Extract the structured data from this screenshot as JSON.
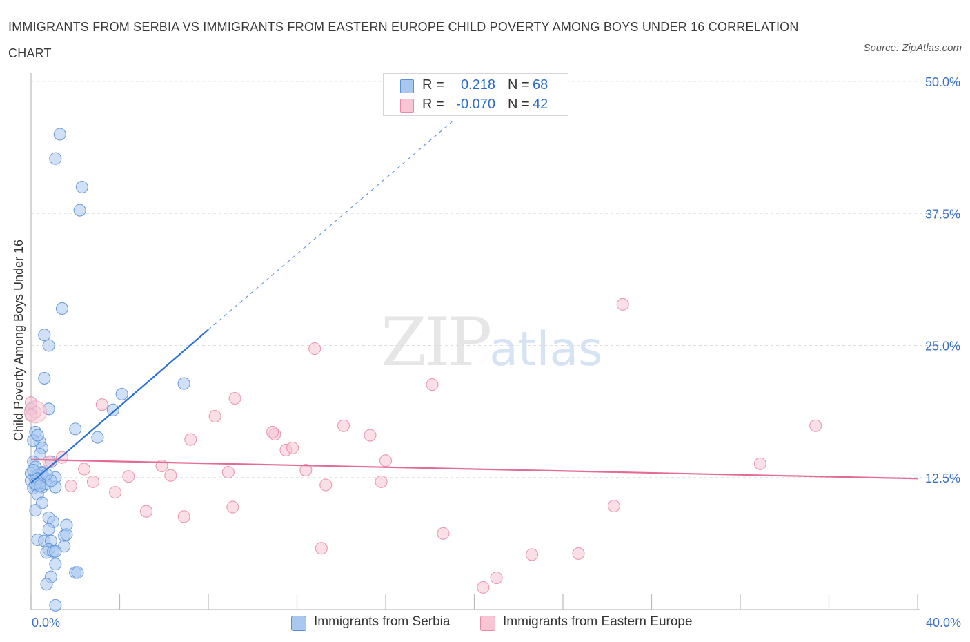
{
  "title": "IMMIGRANTS FROM SERBIA VS IMMIGRANTS FROM EASTERN EUROPE CHILD POVERTY AMONG BOYS UNDER 16 CORRELATION CHART",
  "source": "Source: ZipAtlas.com",
  "watermark": {
    "zip": "ZIP",
    "atlas": "atlas"
  },
  "legend": {
    "rows": [
      {
        "r_label": "R =",
        "r_value": "0.218",
        "n_label": "N =",
        "n_value": "68",
        "color": "#a9c8f0",
        "border": "#5b8fd6"
      },
      {
        "r_label": "R =",
        "r_value": "-0.070",
        "n_label": "N =",
        "n_value": "42",
        "color": "#f7c5d3",
        "border": "#e88aa6"
      }
    ]
  },
  "colors": {
    "serbia": "#5b8fd6",
    "serbia_fill": "#a9c8f0",
    "eastern_europe": "#e88aa6",
    "eastern_europe_fill": "#f7c5d3",
    "serbia_line": "#2a6fd4",
    "ee_line": "#e56b97",
    "axis_label": "#3a72c8"
  },
  "chart_data": {
    "type": "scatter",
    "title": "IMMIGRANTS FROM SERBIA VS IMMIGRANTS FROM EASTERN EUROPE CHILD POVERTY AMONG BOYS UNDER 16 CORRELATION CHART",
    "xlabel": "",
    "ylabel": "Child Poverty Among Boys Under 16",
    "xlim": [
      0,
      40
    ],
    "ylim": [
      0,
      50
    ],
    "x_tick_labels": [
      "0.0%",
      "40.0%"
    ],
    "y_ticks": [
      12.5,
      25.0,
      37.5,
      50.0
    ],
    "y_tick_labels": [
      "12.5%",
      "25.0%",
      "37.5%",
      "50.0%"
    ],
    "grid": true,
    "series": [
      {
        "name": "Immigrants from Serbia",
        "points": [
          [
            1.3,
            45.0
          ],
          [
            1.1,
            42.7
          ],
          [
            2.3,
            40.0
          ],
          [
            2.2,
            37.8
          ],
          [
            1.4,
            28.5
          ],
          [
            0.6,
            26.0
          ],
          [
            0.8,
            25.0
          ],
          [
            0.6,
            21.9
          ],
          [
            0.0,
            19.0
          ],
          [
            0.8,
            19.0
          ],
          [
            0.2,
            16.8
          ],
          [
            0.4,
            15.9
          ],
          [
            0.5,
            15.3
          ],
          [
            0.4,
            14.7
          ],
          [
            0.1,
            14.0
          ],
          [
            0.9,
            14.0
          ],
          [
            0.2,
            13.5
          ],
          [
            0.5,
            13.0
          ],
          [
            0.0,
            12.9
          ],
          [
            0.3,
            12.7
          ],
          [
            0.6,
            12.5
          ],
          [
            1.1,
            12.5
          ],
          [
            0.0,
            12.2
          ],
          [
            0.4,
            12.0
          ],
          [
            0.2,
            11.8
          ],
          [
            0.5,
            11.6
          ],
          [
            0.1,
            11.5
          ],
          [
            0.7,
            11.9
          ],
          [
            1.1,
            11.6
          ],
          [
            0.3,
            10.9
          ],
          [
            0.5,
            10.1
          ],
          [
            0.2,
            9.4
          ],
          [
            0.8,
            8.7
          ],
          [
            1.0,
            8.3
          ],
          [
            1.6,
            8.0
          ],
          [
            0.8,
            7.6
          ],
          [
            1.5,
            7.0
          ],
          [
            1.6,
            7.1
          ],
          [
            0.3,
            6.6
          ],
          [
            0.6,
            6.5
          ],
          [
            0.9,
            6.5
          ],
          [
            1.5,
            6.0
          ],
          [
            0.8,
            5.7
          ],
          [
            0.7,
            5.4
          ],
          [
            1.0,
            5.5
          ],
          [
            1.1,
            5.5
          ],
          [
            1.1,
            4.3
          ],
          [
            2.0,
            3.5
          ],
          [
            2.1,
            3.5
          ],
          [
            0.9,
            3.1
          ],
          [
            0.7,
            2.4
          ],
          [
            1.1,
            0.4
          ],
          [
            4.1,
            20.4
          ],
          [
            3.7,
            18.9
          ],
          [
            3.0,
            16.3
          ],
          [
            6.9,
            21.4
          ],
          [
            2.0,
            17.1
          ],
          [
            0.2,
            12.3
          ],
          [
            0.4,
            12.0
          ],
          [
            0.9,
            12.2
          ],
          [
            0.5,
            12.9
          ],
          [
            0.1,
            13.2
          ],
          [
            0.3,
            12.4
          ],
          [
            0.2,
            11.9
          ],
          [
            0.7,
            12.8
          ],
          [
            0.1,
            16.0
          ],
          [
            0.3,
            16.5
          ],
          [
            0.4,
            11.7
          ]
        ]
      },
      {
        "name": "Immigrants from Eastern Europe",
        "points": [
          [
            0.2,
            18.7
          ],
          [
            3.2,
            19.4
          ],
          [
            9.2,
            20.0
          ],
          [
            8.3,
            18.3
          ],
          [
            12.8,
            24.7
          ],
          [
            18.1,
            21.3
          ],
          [
            26.7,
            28.9
          ],
          [
            35.4,
            17.4
          ],
          [
            14.1,
            17.4
          ],
          [
            15.3,
            16.5
          ],
          [
            11.0,
            16.6
          ],
          [
            11.5,
            15.1
          ],
          [
            7.2,
            16.1
          ],
          [
            10.9,
            16.8
          ],
          [
            11.8,
            15.3
          ],
          [
            16.0,
            14.1
          ],
          [
            0.8,
            14.0
          ],
          [
            1.4,
            14.4
          ],
          [
            2.4,
            13.3
          ],
          [
            5.9,
            13.6
          ],
          [
            6.3,
            12.7
          ],
          [
            4.4,
            12.6
          ],
          [
            8.9,
            13.0
          ],
          [
            12.4,
            13.2
          ],
          [
            15.8,
            12.1
          ],
          [
            2.8,
            12.1
          ],
          [
            1.8,
            11.7
          ],
          [
            13.3,
            11.8
          ],
          [
            32.9,
            13.8
          ],
          [
            3.8,
            11.1
          ],
          [
            26.3,
            9.8
          ],
          [
            9.1,
            9.7
          ],
          [
            5.2,
            9.3
          ],
          [
            6.9,
            8.8
          ],
          [
            18.6,
            7.2
          ],
          [
            13.1,
            5.8
          ],
          [
            22.6,
            5.2
          ],
          [
            24.7,
            5.3
          ],
          [
            21.0,
            3.0
          ],
          [
            20.4,
            2.1
          ],
          [
            0.0,
            19.6
          ],
          [
            0.0,
            18.4
          ]
        ]
      }
    ],
    "trend_lines": [
      {
        "series": "Immigrants from Serbia",
        "x0": 0.0,
        "y0": 12.0,
        "x1": 8.0,
        "y1": 26.5,
        "dashed_to_x": 19.0,
        "dashed_to_y": 46.2
      },
      {
        "series": "Immigrants from Eastern Europe",
        "x0": 0.0,
        "y0": 14.2,
        "x1": 40.0,
        "y1": 12.4
      }
    ]
  },
  "bottom_legend": [
    {
      "label": "Immigrants from Serbia"
    },
    {
      "label": "Immigrants from Eastern Europe"
    }
  ]
}
